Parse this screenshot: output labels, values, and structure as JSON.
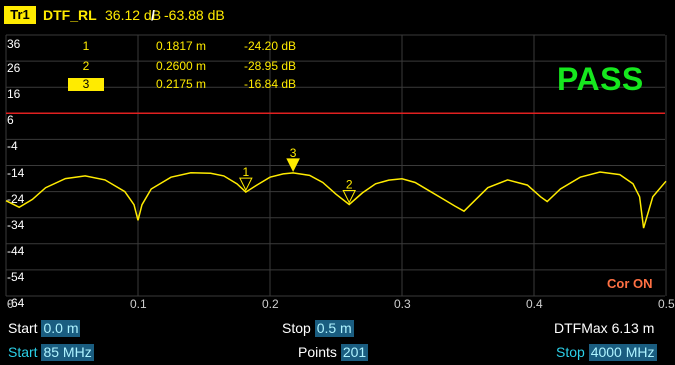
{
  "header": {
    "trace_badge": "Tr1",
    "trace_name": "DTF_RL",
    "scale_value": "36.12 dB",
    "separator": "/",
    "ref_value": "-63.88 dB"
  },
  "y_axis": {
    "tick_labels": [
      "36",
      "26",
      "16",
      "6",
      "-4",
      "-14",
      "-24",
      "-34",
      "-44",
      "-54",
      "-64"
    ]
  },
  "x_axis": {
    "tick_labels": [
      "0",
      "0.1",
      "0.2",
      "0.3",
      "0.4",
      "0.5"
    ]
  },
  "markers": [
    {
      "number": "1",
      "position": "0.1817 m",
      "value": "-24.20 dB",
      "active": false
    },
    {
      "number": "2",
      "position": "0.2600 m",
      "value": "-28.95 dB",
      "active": false
    },
    {
      "number": "3",
      "position": "0.2175 m",
      "value": "-16.84 dB",
      "active": true
    }
  ],
  "status": {
    "pass_label": "PASS",
    "correction_label": "Cor ON"
  },
  "limit_line": {
    "value": 6,
    "color": "#e02020"
  },
  "colors": {
    "trace": "#ffeb00",
    "grid": "#3a3a3a",
    "pass": "#16e81e",
    "correction": "#ff7043"
  },
  "footer": {
    "row1": {
      "start_label": "Start",
      "start_value": "0.0 m",
      "stop_label": "Stop",
      "stop_value": "0.5 m",
      "dtfmax_label": "DTFMax",
      "dtfmax_value": "6.13 m"
    },
    "row2": {
      "start_label": "Start",
      "start_value": "85 MHz",
      "points_label": "Points",
      "points_value": "201",
      "stop_label": "Stop",
      "stop_value": "4000 MHz"
    }
  },
  "chart_data": {
    "type": "line",
    "xlim": [
      0,
      0.5
    ],
    "ylim": [
      -64,
      36
    ],
    "x": [
      0,
      0.01,
      0.02,
      0.03,
      0.045,
      0.06,
      0.075,
      0.09,
      0.097,
      0.1,
      0.103,
      0.11,
      0.125,
      0.14,
      0.155,
      0.165,
      0.175,
      0.1817,
      0.19,
      0.2,
      0.21,
      0.2175,
      0.23,
      0.24,
      0.25,
      0.26,
      0.27,
      0.28,
      0.29,
      0.3,
      0.31,
      0.32,
      0.33,
      0.34,
      0.347,
      0.355,
      0.365,
      0.38,
      0.395,
      0.405,
      0.41,
      0.42,
      0.435,
      0.45,
      0.465,
      0.475,
      0.48,
      0.483,
      0.49,
      0.5
    ],
    "series": [
      {
        "values": [
          -27.5,
          -30,
          -27,
          -22.5,
          -19,
          -18,
          -19.5,
          -24,
          -29,
          -35,
          -29,
          -23,
          -18.5,
          -16.8,
          -17,
          -18,
          -21,
          -24.2,
          -21.5,
          -18.5,
          -17.2,
          -16.84,
          -17.8,
          -20.5,
          -25,
          -28.95,
          -24.5,
          -21,
          -19.6,
          -19.1,
          -20.5,
          -23.5,
          -26.5,
          -29.5,
          -31.5,
          -27.5,
          -22.5,
          -19.5,
          -21.5,
          -26,
          -27.8,
          -23,
          -18.5,
          -16.5,
          -17.5,
          -21,
          -26,
          -38,
          -26,
          -20
        ]
      }
    ]
  }
}
